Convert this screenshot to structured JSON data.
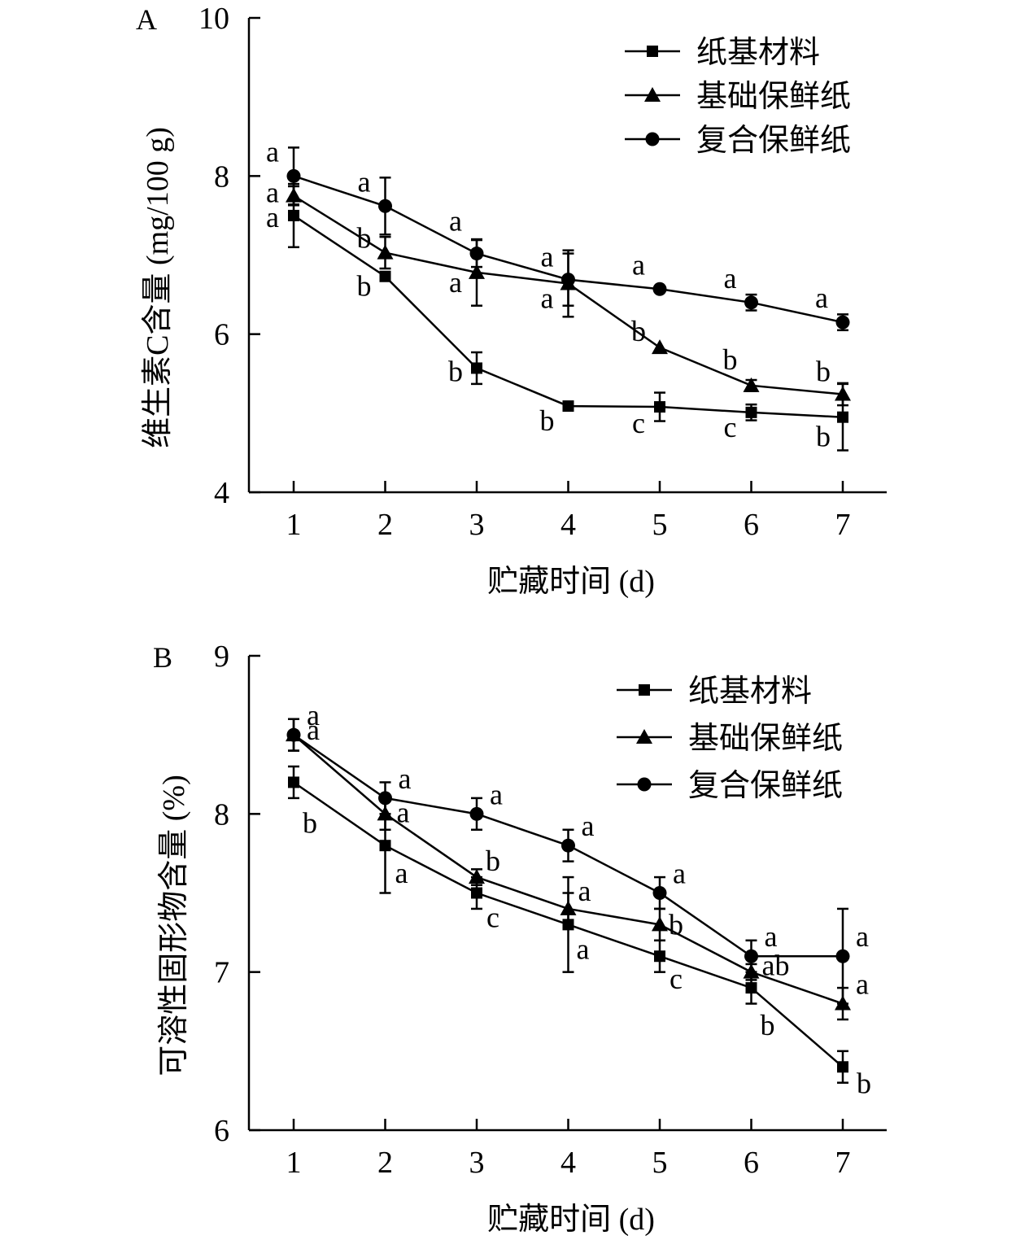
{
  "chart_data": [
    {
      "panel": "A",
      "type": "line",
      "xlabel": "贮藏时间 (d)",
      "ylabel": "维生素C含量 (mg/100 g)",
      "x": [
        1,
        2,
        3,
        4,
        5,
        6,
        7
      ],
      "xticks": [
        "1",
        "2",
        "3",
        "4",
        "5",
        "6",
        "7"
      ],
      "ylim": [
        4,
        10
      ],
      "yticks": [
        "4",
        "6",
        "8",
        "10"
      ],
      "legend_position": "top-right",
      "grid": false,
      "series": [
        {
          "name": "纸基材料",
          "marker": "square",
          "values": [
            7.5,
            6.73,
            5.57,
            5.09,
            5.08,
            5.01,
            4.95
          ],
          "errors": [
            0.4,
            0.04,
            0.2,
            0.02,
            0.18,
            0.1,
            0.42
          ],
          "letters": [
            "a",
            "b",
            "b",
            "b",
            "c",
            "c",
            "b"
          ]
        },
        {
          "name": "基础保鲜纸",
          "marker": "triangle",
          "values": [
            7.75,
            7.03,
            6.78,
            6.64,
            5.83,
            5.35,
            5.24
          ],
          "errors": [
            0.12,
            0.2,
            0.42,
            0.42,
            0.02,
            0.07,
            0.14
          ],
          "letters": [
            "a",
            "b",
            "a",
            "a",
            "b",
            "b",
            "b"
          ]
        },
        {
          "name": "复合保鲜纸",
          "marker": "circle",
          "values": [
            8.0,
            7.62,
            7.02,
            6.69,
            6.57,
            6.4,
            6.15
          ],
          "errors": [
            0.36,
            0.36,
            0.17,
            0.33,
            0.02,
            0.1,
            0.1
          ],
          "letters": [
            "a",
            "a",
            "a",
            "a",
            "a",
            "a",
            "a"
          ]
        }
      ]
    },
    {
      "panel": "B",
      "type": "line",
      "xlabel": "贮藏时间 (d)",
      "ylabel": "可溶性固形物含量 (%)",
      "x": [
        1,
        2,
        3,
        4,
        5,
        6,
        7
      ],
      "xticks": [
        "1",
        "2",
        "3",
        "4",
        "5",
        "6",
        "7"
      ],
      "ylim": [
        6,
        9
      ],
      "yticks": [
        "6",
        "7",
        "8",
        "9"
      ],
      "legend_position": "top-right",
      "grid": false,
      "series": [
        {
          "name": "纸基材料",
          "marker": "square",
          "values": [
            8.2,
            7.8,
            7.5,
            7.3,
            7.1,
            6.9,
            6.4
          ],
          "errors": [
            0.1,
            0.3,
            0.1,
            0.3,
            0.1,
            0.1,
            0.1
          ],
          "letters": [
            "b",
            "a",
            "c",
            "a",
            "c",
            "b",
            "b"
          ]
        },
        {
          "name": "基础保鲜纸",
          "marker": "triangle",
          "values": [
            8.5,
            8.0,
            7.6,
            7.4,
            7.3,
            7.0,
            6.8
          ],
          "errors": [
            0.1,
            0.1,
            0.05,
            0.1,
            0.1,
            0.05,
            0.1
          ],
          "letters": [
            "a",
            "a",
            "b",
            "a",
            "b",
            "ab",
            "a"
          ]
        },
        {
          "name": "复合保鲜纸",
          "marker": "circle",
          "values": [
            8.5,
            8.1,
            8.0,
            7.8,
            7.5,
            7.1,
            7.1
          ],
          "errors": [
            0.1,
            0.1,
            0.1,
            0.1,
            0.1,
            0.1,
            0.3
          ],
          "letters": [
            "a",
            "a",
            "a",
            "a",
            "a",
            "a",
            "a"
          ]
        }
      ]
    }
  ]
}
